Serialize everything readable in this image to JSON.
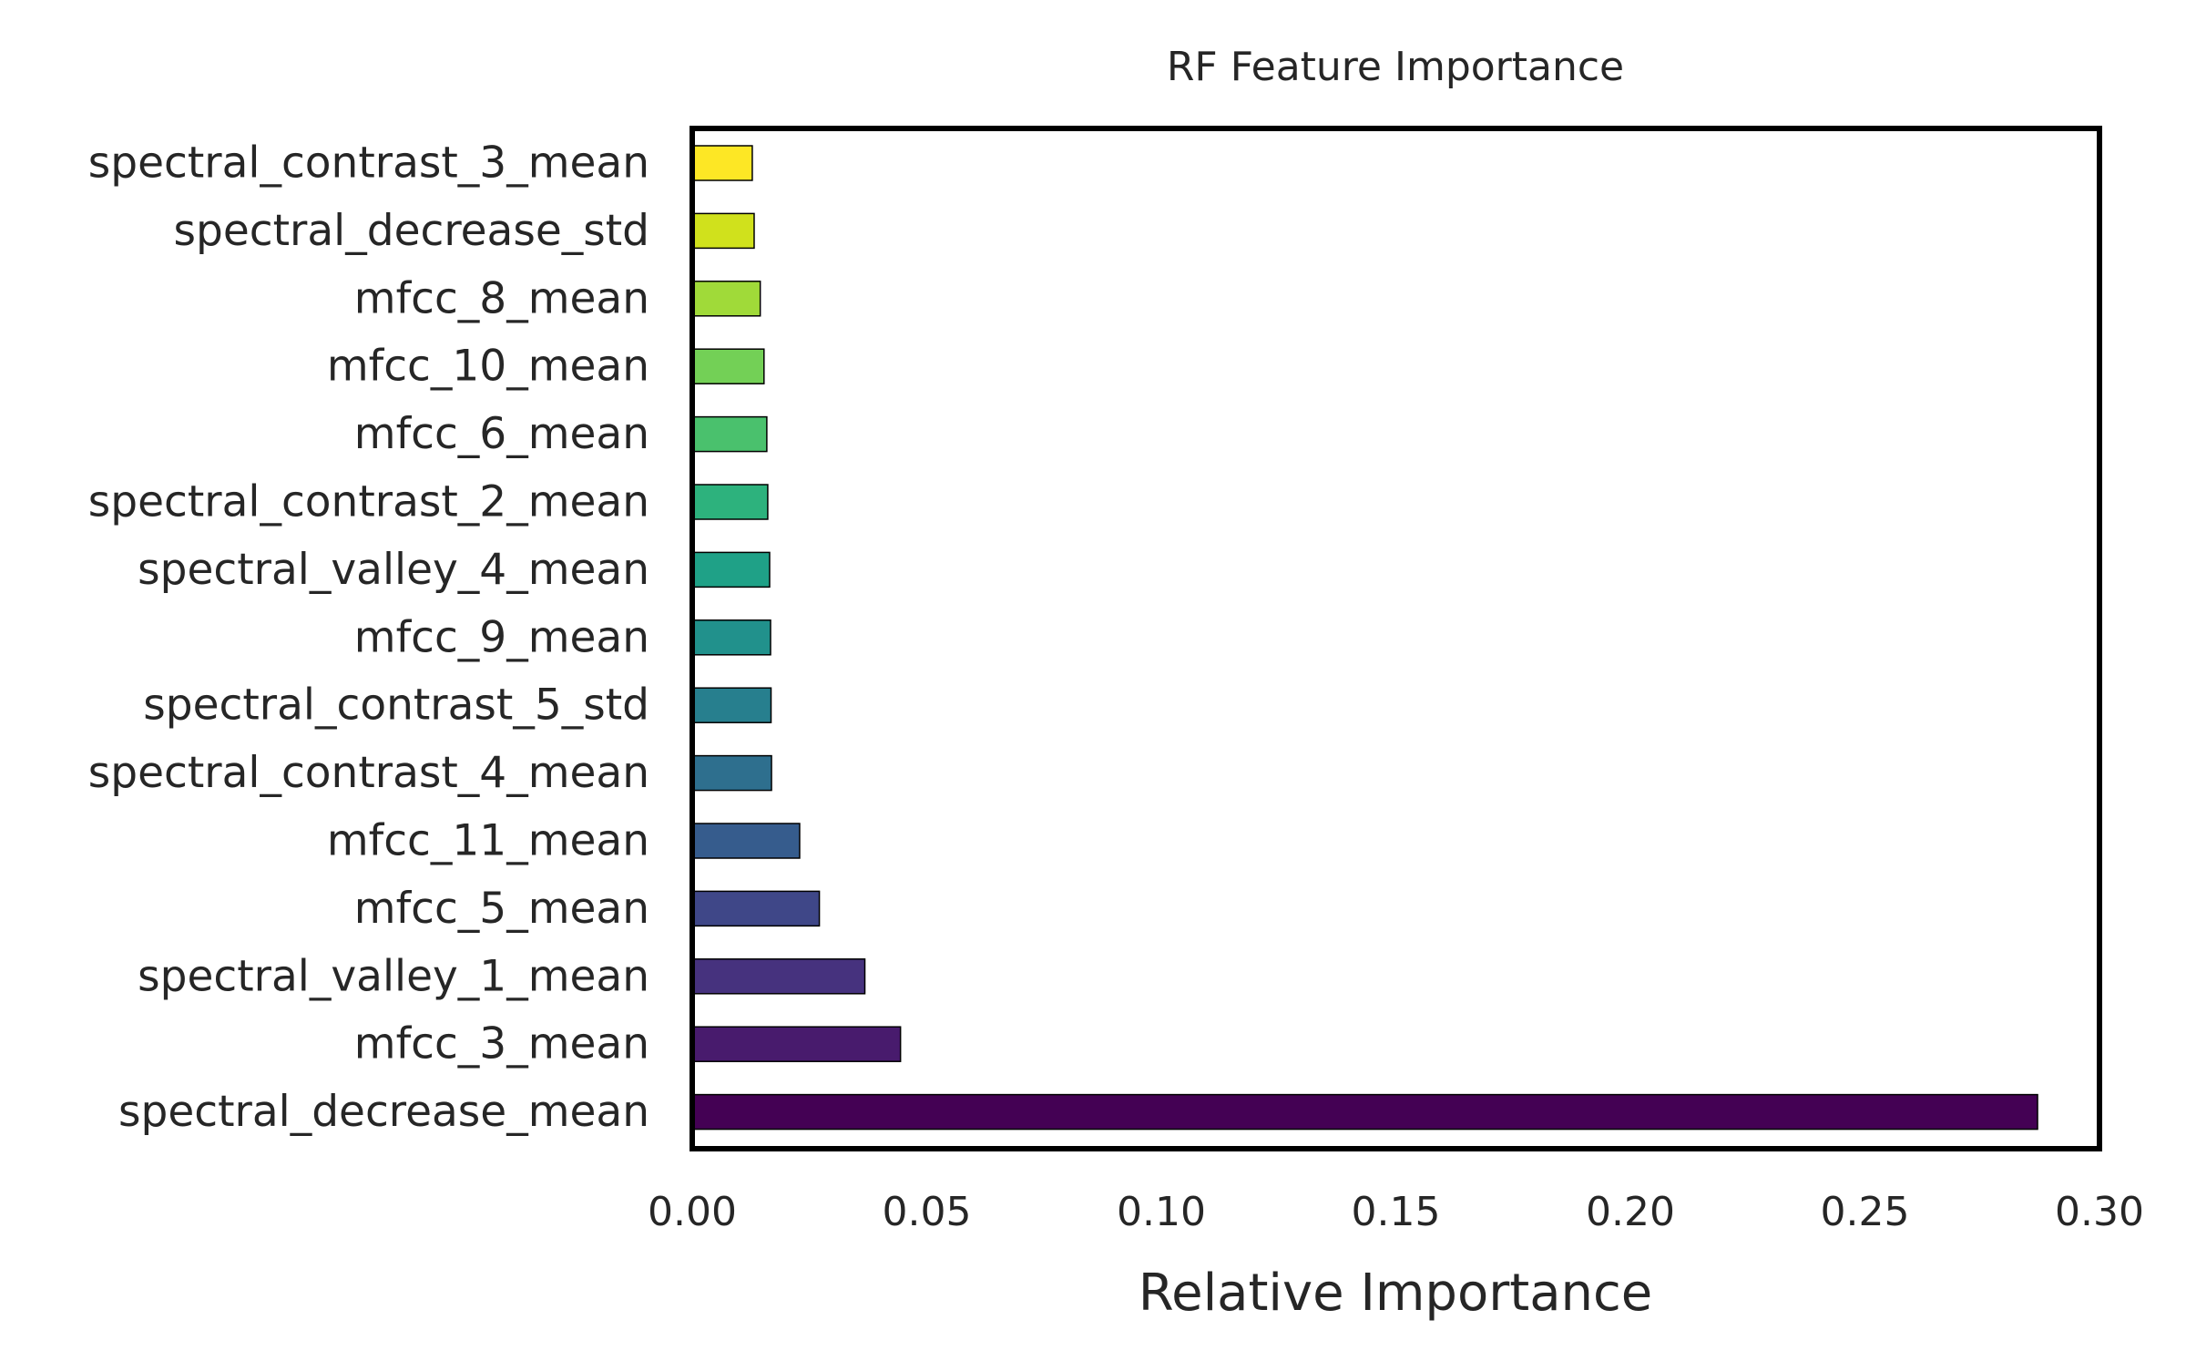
{
  "chart_data": {
    "type": "bar",
    "orientation": "horizontal",
    "title": "RF Feature Importance",
    "xlabel": "Relative Importance",
    "ylabel": "",
    "xlim": [
      0,
      0.3
    ],
    "xticks": [
      "0.00",
      "0.05",
      "0.10",
      "0.15",
      "0.20",
      "0.25",
      "0.30"
    ],
    "grid": false,
    "categories": [
      "spectral_contrast_3_mean",
      "spectral_decrease_std",
      "mfcc_8_mean",
      "mfcc_10_mean",
      "mfcc_6_mean",
      "spectral_contrast_2_mean",
      "spectral_valley_4_mean",
      "mfcc_9_mean",
      "spectral_contrast_5_std",
      "spectral_contrast_4_mean",
      "mfcc_11_mean",
      "mfcc_5_mean",
      "spectral_valley_1_mean",
      "mfcc_3_mean",
      "spectral_decrease_mean"
    ],
    "values": [
      0.0128,
      0.0132,
      0.0145,
      0.0153,
      0.0159,
      0.0161,
      0.0165,
      0.0167,
      0.0168,
      0.0169,
      0.0229,
      0.0271,
      0.0368,
      0.0444,
      0.2868
    ],
    "colors": [
      "#fde725",
      "#d0e11c",
      "#a0da39",
      "#73d056",
      "#4ac16d",
      "#2db27d",
      "#1fa187",
      "#21918c",
      "#277f8e",
      "#2e6f8e",
      "#365c8d",
      "#3f4788",
      "#46327e",
      "#481b6d",
      "#440154"
    ]
  }
}
